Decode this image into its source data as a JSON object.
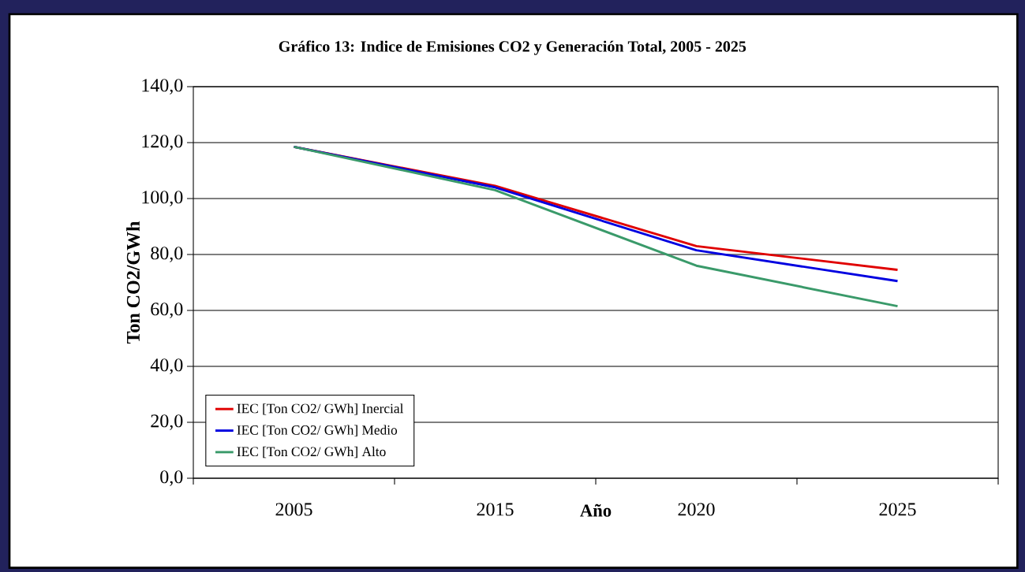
{
  "chart_data": {
    "type": "line",
    "title": "Gráfico 13: Indice de Emisiones CO2 y Generación Total, 2005 - 2025",
    "xlabel": "Año",
    "ylabel": "Ton CO2/GWh",
    "categories": [
      "2005",
      "2015",
      "2020",
      "2025"
    ],
    "series": [
      {
        "name": "IEC [Ton CO2/ GWh] Inercial",
        "color": "#e00000",
        "values": [
          118.5,
          104.5,
          83,
          74.5
        ]
      },
      {
        "name": "IEC [Ton CO2/ GWh] Medio",
        "color": "#0000e0",
        "values": [
          118.5,
          104,
          81.5,
          70.5
        ]
      },
      {
        "name": "IEC [Ton CO2/ GWh] Alto",
        "color": "#3a9a6a",
        "values": [
          118.5,
          103,
          76,
          61.5
        ]
      }
    ],
    "ylim": [
      0,
      140
    ],
    "yticks": [
      {
        "value": 0,
        "label": "0,0"
      },
      {
        "value": 20,
        "label": "20,0"
      },
      {
        "value": 40,
        "label": "40,0"
      },
      {
        "value": 60,
        "label": "60,0"
      },
      {
        "value": 80,
        "label": "80,0"
      },
      {
        "value": 100,
        "label": "100,0"
      },
      {
        "value": 120,
        "label": "120,0"
      },
      {
        "value": 140,
        "label": "140,0"
      }
    ],
    "grid": "y",
    "legend": "bottom left",
    "marker": "none",
    "line_style": "solid"
  }
}
